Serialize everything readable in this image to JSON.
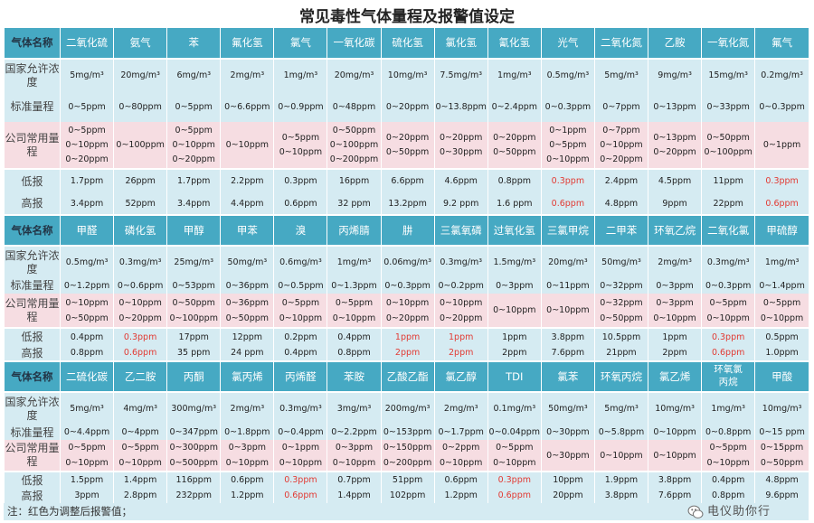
{
  "title": "常见毒性气体量程及报警值设定",
  "labels": {
    "name": "气体名称",
    "limit": "国家允许浓度",
    "std": "标准量程",
    "company": "公司常用量程",
    "low": "低报",
    "high": "高报"
  },
  "colors": {
    "header": "#46a9c3",
    "body": "#d5ebf2",
    "pink": "#f6dde2",
    "company_text": "#7a3f8f",
    "adjusted": "#e23a33"
  },
  "blocks": [
    {
      "gases": [
        "二氧化硫",
        "氨气",
        "苯",
        "氟化氢",
        "氯气",
        "一氧化碳",
        "硫化氢",
        "氯化氢",
        "氰化氢",
        "光气",
        "二氧化氮",
        "乙胺",
        "一氧化氮",
        "氟气"
      ],
      "limit": [
        "5mg/m³",
        "20mg/m³",
        "6mg/m³",
        "2mg/m³",
        "1mg/m³",
        "20mg/m³",
        "10mg/m³",
        "7.5mg/m³",
        "1mg/m³",
        "0.5mg/m³",
        "5mg/m³",
        "9mg/m³",
        "15mg/m³",
        "0.2mg/m³"
      ],
      "std": [
        "0~5ppm",
        "0~80ppm",
        "0~5ppm",
        "0~6.6ppm",
        "0~0.9ppm",
        "0~48ppm",
        "0~20ppm",
        "0~13.8ppm",
        "0~2.4ppm",
        "0~0.3ppm",
        "0~7ppm",
        "0~13ppm",
        "0~33ppm",
        "0~0.3ppm"
      ],
      "company": [
        [
          "0~5ppm",
          "0~10ppm",
          "0~20ppm"
        ],
        [
          "0~100ppm"
        ],
        [
          "0~5ppm",
          "0~10ppm",
          "0~20ppm"
        ],
        [
          "0~10ppm"
        ],
        [
          "0~5ppm",
          "0~10ppm"
        ],
        [
          "0~50ppm",
          "0~100ppm",
          "0~200ppm"
        ],
        [
          "0~20ppm",
          "0~50ppm"
        ],
        [
          "0~20ppm",
          "0~30ppm"
        ],
        [
          "0~20ppm",
          "0~50ppm"
        ],
        [
          "0~1ppm",
          "0~5ppm",
          "0~10ppm"
        ],
        [
          "0~7ppm",
          "0~10ppm",
          "0~20ppm"
        ],
        [
          "0~13ppm",
          "0~20ppm"
        ],
        [
          "0~50ppm",
          "0~100ppm"
        ],
        [
          "0~1ppm"
        ]
      ],
      "low": [
        "1.7ppm",
        "26ppm",
        "1.7ppm",
        "2.2ppm",
        "0.3ppm",
        "16ppm",
        "6.6ppm",
        "4.6ppm",
        "0.8ppm",
        "0.3ppm",
        "2.4ppm",
        "4.5ppm",
        "11ppm",
        "0.3ppm"
      ],
      "high": [
        "3.4ppm",
        "52ppm",
        "3.4ppm",
        "4.4ppm",
        "0.6ppm",
        "32 ppm",
        "13.2ppm",
        "9.2 ppm",
        "1.6 ppm",
        "0.6ppm",
        "4.8ppm",
        "9ppm",
        "22ppm",
        "0.6ppm"
      ],
      "adjusted": [
        9,
        13
      ]
    },
    {
      "gases": [
        "甲醛",
        "磷化氢",
        "甲醇",
        "甲苯",
        "溴",
        "丙烯腈",
        "肼",
        "三氯氧磷",
        "过氧化氢",
        "三氯甲烷",
        "二甲苯",
        "环氧乙烷",
        "二氧化氯",
        "甲硫醇"
      ],
      "limit": [
        "0.5mg/m³",
        "0.3mg/m³",
        "25mg/m³",
        "50mg/m³",
        "0.6mg/m³",
        "1mg/m³",
        "0.06mg/m³",
        "0.3mg/m³",
        "1.5mg/m³",
        "20mg/m³",
        "50mg/m³",
        "2mg/m³",
        "0.3mg/m³",
        "1mg/m³"
      ],
      "std": [
        "0~1.2ppm",
        "0~0.6ppm",
        "0~53ppm",
        "0~36ppm",
        "0~0.5ppm",
        "0~1.3ppm",
        "0~0.3ppm",
        "0~0.2ppm",
        "0~3ppm",
        "0~11ppm",
        "0~32ppm",
        "0~3ppm",
        "0~0.3ppm",
        "0~1.4ppm"
      ],
      "company": [
        [
          "0~10ppm",
          "0~50ppm"
        ],
        [
          "0~10ppm",
          "0~20ppm"
        ],
        [
          "0~50ppm",
          "0~100ppm"
        ],
        [
          "0~36ppm",
          "0~50ppm"
        ],
        [
          "0~5ppm",
          "0~10ppm"
        ],
        [
          "0~5ppm",
          "0~10ppm"
        ],
        [
          "0~10ppm",
          "0~20ppm"
        ],
        [
          "0~10ppm",
          "0~20ppm"
        ],
        [
          "0~10ppm"
        ],
        [
          "0~10ppm"
        ],
        [
          "0~32ppm",
          "0~50ppm"
        ],
        [
          "0~3ppm",
          "0~10ppm"
        ],
        [
          "0~5ppm",
          "0~10ppm"
        ],
        [
          "0~5ppm",
          "0~10ppm"
        ]
      ],
      "low": [
        "0.4ppm",
        "0.3ppm",
        "17ppm",
        "12ppm",
        "0.2ppm",
        "0.4ppm",
        "1ppm",
        "1ppm",
        "1ppm",
        "3.8ppm",
        "10.5ppm",
        "1ppm",
        "0.3ppm",
        "0.5ppm"
      ],
      "high": [
        "0.8ppm",
        "0.6ppm",
        "35 ppm",
        "24 ppm",
        "0.4ppm",
        "0.8ppm",
        "2ppm",
        "2ppm",
        "2ppm",
        "7.6ppm",
        "21ppm",
        "2ppm",
        "0.6ppm",
        "1.0ppm"
      ],
      "adjusted": [
        1,
        6,
        7,
        12
      ]
    },
    {
      "gases": [
        "二硫化碳",
        "乙二胺",
        "丙酮",
        "氯丙烯",
        "丙烯醛",
        "苯胺",
        "乙酸乙酯",
        "氯乙醇",
        "TDI",
        "氯苯",
        "环氧丙烷",
        "氯乙烯",
        "环氧氯丙烷",
        "甲酸"
      ],
      "limit": [
        "5mg/m³",
        "4mg/m³",
        "300mg/m³",
        "2mg/m³",
        "0.3mg/m³",
        "3mg/m³",
        "200mg/m³",
        "2mg/m³",
        "0.1mg/m³",
        "50mg/m³",
        "5mg/m³",
        "10mg/m³",
        "1mg/m³",
        "10mg/m³"
      ],
      "std": [
        "0~4.4ppm",
        "0~4ppm",
        "0~347ppm",
        "0~1.8ppm",
        "0~0.4ppm",
        "0~2.2ppm",
        "0~153ppm",
        "0~1.7ppm",
        "0~0.04ppm",
        "0~30ppm",
        "0~5.8ppm",
        "0~10ppm",
        "0~0.8ppm",
        "0~15 ppm"
      ],
      "company": [
        [
          "0~5ppm",
          "0~10ppm"
        ],
        [
          "0~5ppm",
          "0~10ppm"
        ],
        [
          "0~300ppm",
          "0~500ppm"
        ],
        [
          "0~3ppm",
          "0~10ppm"
        ],
        [
          "0~1ppm",
          "0~10ppm"
        ],
        [
          "0~3ppm",
          "0~10ppm"
        ],
        [
          "0~150ppm",
          "0~200ppm"
        ],
        [
          "0~2ppm",
          "0~10ppm"
        ],
        [
          "0~5ppm",
          "0~10ppm"
        ],
        [
          "0~30ppm"
        ],
        [
          "0~10ppm"
        ],
        [
          "0~10ppm"
        ],
        [
          "0~5ppm",
          "0~10ppm"
        ],
        [
          "0~15ppm",
          "0~50ppm"
        ]
      ],
      "low": [
        "1.5ppm",
        "1.4ppm",
        "116ppm",
        "0.6ppm",
        "0.3ppm",
        "0.7ppm",
        "51ppm",
        "0.6ppm",
        "0.3ppm",
        "10ppm",
        "1.9ppm",
        "3.8ppm",
        "0.4ppm",
        "4.8ppm"
      ],
      "high": [
        "3ppm",
        "2.8ppm",
        "232ppm",
        "1.2ppm",
        "0.6ppm",
        "1.4ppm",
        "102ppm",
        "1.2ppm",
        "0.6ppm",
        "20ppm",
        "3.8ppm",
        "7.6ppm",
        "0.8ppm",
        "9.6ppm"
      ],
      "adjusted": [
        4,
        8
      ]
    }
  ],
  "note": "注：红色为调整后报警值；",
  "watermark": "电仪助你行"
}
